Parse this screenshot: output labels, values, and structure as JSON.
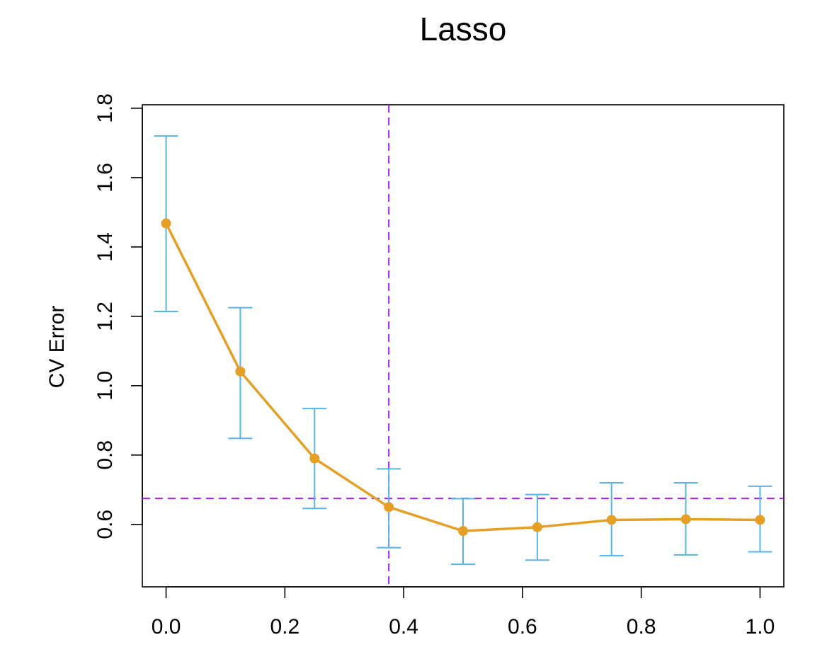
{
  "chart_data": {
    "type": "line",
    "title": "Lasso",
    "xlabel": "",
    "ylabel": "CV Error",
    "xlim": [
      -0.04,
      1.04
    ],
    "ylim": [
      0.42,
      1.81
    ],
    "x_ticks": [
      0.0,
      0.2,
      0.4,
      0.6,
      0.8,
      1.0
    ],
    "x_tick_labels": [
      "0.0",
      "0.2",
      "0.4",
      "0.6",
      "0.8",
      "1.0"
    ],
    "y_ticks": [
      0.6,
      0.8,
      1.0,
      1.2,
      1.4,
      1.6,
      1.8
    ],
    "y_tick_labels": [
      "0.6",
      "0.8",
      "1.0",
      "1.2",
      "1.4",
      "1.6",
      "1.8"
    ],
    "grid": false,
    "legend": "none",
    "series": [
      {
        "x": [
          0.0,
          0.125,
          0.25,
          0.375,
          0.5,
          0.625,
          0.75,
          0.875,
          1.0
        ],
        "values": [
          1.468,
          1.041,
          0.79,
          0.65,
          0.581,
          0.592,
          0.613,
          0.615,
          0.613
        ],
        "error_lower": [
          1.214,
          0.848,
          0.646,
          0.533,
          0.485,
          0.497,
          0.51,
          0.512,
          0.521
        ],
        "error_upper": [
          1.72,
          1.225,
          0.934,
          0.76,
          0.674,
          0.686,
          0.72,
          0.72,
          0.71
        ],
        "color": "#E69F25",
        "error_color": "#56B4E9"
      }
    ],
    "reference_lines": {
      "vertical_x": 0.375,
      "horizontal_y": 0.675,
      "color": "#A020F0",
      "style": "dashed"
    }
  }
}
